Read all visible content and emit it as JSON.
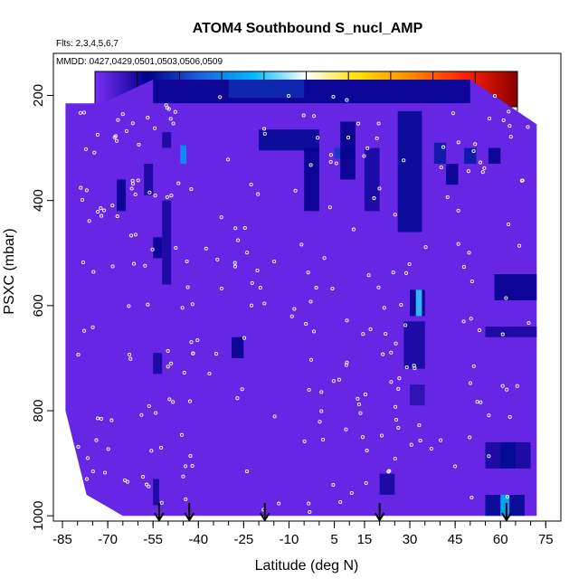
{
  "chart_data": {
    "type": "heatmap",
    "title": "ATOM4 Southbound S_nucl_AMP",
    "flights_note": "Flts: 2,3,4,5,6,7",
    "dates_note": "MMDD: 0427,0429,0501,0503,0506,0509",
    "xlabel": "Latitude (deg N)",
    "ylabel": "PSXC (mbar)",
    "xlim": [
      -88,
      80
    ],
    "ylim": [
      1010,
      120
    ],
    "x_ticks": [
      -85,
      -70,
      -55,
      -40,
      -25,
      -10,
      5,
      15,
      30,
      45,
      60,
      75
    ],
    "y_ticks": [
      200,
      400,
      600,
      800,
      1000
    ],
    "colorbar": {
      "range": [
        0,
        5
      ],
      "ticks": [
        "0.0",
        "0.5",
        "1.0",
        "1.5",
        "2.0",
        "2.5",
        "3.0",
        "3.5",
        "4.0",
        "4.5",
        "5.0"
      ],
      "colors": [
        "#7a2df5",
        "#00008b",
        "#1f60e0",
        "#00b8ff",
        "#ffffff",
        "#ffe000",
        "#ff8800",
        "#ff2000",
        "#8b0000"
      ]
    },
    "background_value": 0.1,
    "domain_outline": [
      [
        -84,
        215
      ],
      [
        -72,
        215
      ],
      [
        -55,
        170
      ],
      [
        50,
        170
      ],
      [
        72,
        255
      ],
      [
        72,
        1000
      ],
      [
        -65,
        1000
      ],
      [
        -77,
        960
      ],
      [
        -84,
        800
      ]
    ],
    "patches": [
      {
        "lat": [
          -55,
          50
        ],
        "p": [
          170,
          215
        ],
        "v": 0.6
      },
      {
        "lat": [
          -30,
          -5
        ],
        "p": [
          170,
          205
        ],
        "v": 0.9
      },
      {
        "lat": [
          -20,
          0
        ],
        "p": [
          265,
          305
        ],
        "v": 0.7
      },
      {
        "lat": [
          5,
          12
        ],
        "p": [
          300,
          320
        ],
        "v": 1.0
      },
      {
        "lat": [
          -52,
          -49
        ],
        "p": [
          270,
          300
        ],
        "v": 0.5
      },
      {
        "lat": [
          -46,
          -44
        ],
        "p": [
          295,
          330
        ],
        "v": 1.6
      },
      {
        "lat": [
          -67,
          -64
        ],
        "p": [
          360,
          420
        ],
        "v": 0.6
      },
      {
        "lat": [
          -58,
          -55
        ],
        "p": [
          330,
          390
        ],
        "v": 0.5
      },
      {
        "lat": [
          -55,
          -52
        ],
        "p": [
          470,
          510
        ],
        "v": 0.6
      },
      {
        "lat": [
          -52,
          -49
        ],
        "p": [
          400,
          560
        ],
        "v": 0.5
      },
      {
        "lat": [
          -5,
          0
        ],
        "p": [
          300,
          420
        ],
        "v": 0.6
      },
      {
        "lat": [
          7,
          12
        ],
        "p": [
          250,
          360
        ],
        "v": 0.6
      },
      {
        "lat": [
          15,
          20
        ],
        "p": [
          300,
          420
        ],
        "v": 0.5
      },
      {
        "lat": [
          26,
          34
        ],
        "p": [
          230,
          460
        ],
        "v": 0.7
      },
      {
        "lat": [
          38,
          42
        ],
        "p": [
          290,
          330
        ],
        "v": 0.8
      },
      {
        "lat": [
          48,
          52
        ],
        "p": [
          300,
          330
        ],
        "v": 0.8
      },
      {
        "lat": [
          56,
          60
        ],
        "p": [
          300,
          330
        ],
        "v": 0.6
      },
      {
        "lat": [
          42,
          46
        ],
        "p": [
          330,
          370
        ],
        "v": 0.6
      },
      {
        "lat": [
          58,
          72
        ],
        "p": [
          540,
          590
        ],
        "v": 0.6
      },
      {
        "lat": [
          30,
          35
        ],
        "p": [
          570,
          620
        ],
        "v": 0.6
      },
      {
        "lat": [
          32,
          34
        ],
        "p": [
          570,
          620
        ],
        "v": 2.0
      },
      {
        "lat": [
          28,
          35
        ],
        "p": [
          630,
          720
        ],
        "v": 0.5
      },
      {
        "lat": [
          55,
          72
        ],
        "p": [
          640,
          660
        ],
        "v": 0.5
      },
      {
        "lat": [
          -55,
          -52
        ],
        "p": [
          690,
          730
        ],
        "v": 0.5
      },
      {
        "lat": [
          -29,
          -25
        ],
        "p": [
          660,
          700
        ],
        "v": 0.6
      },
      {
        "lat": [
          30,
          35
        ],
        "p": [
          750,
          790
        ],
        "v": 0.4
      },
      {
        "lat": [
          55,
          70
        ],
        "p": [
          860,
          910
        ],
        "v": 0.5
      },
      {
        "lat": [
          60,
          65
        ],
        "p": [
          860,
          910
        ],
        "v": 0.7
      },
      {
        "lat": [
          20,
          25
        ],
        "p": [
          920,
          960
        ],
        "v": 0.5
      },
      {
        "lat": [
          55,
          68
        ],
        "p": [
          960,
          1000
        ],
        "v": 0.7
      },
      {
        "lat": [
          60,
          63
        ],
        "p": [
          960,
          1000
        ],
        "v": 1.8
      },
      {
        "lat": [
          -55,
          -53
        ],
        "p": [
          930,
          980
        ],
        "v": 0.5
      }
    ],
    "arrows_lat": [
      -53,
      -43,
      -18,
      20,
      62
    ]
  }
}
